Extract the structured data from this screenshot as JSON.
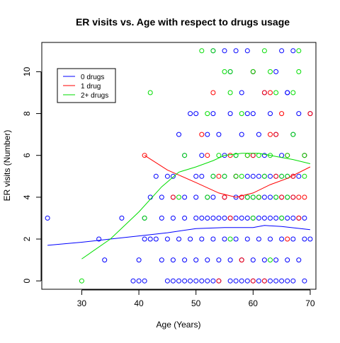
{
  "chart_data": {
    "type": "scatter",
    "title": "ER visits vs. Age with respect to drugs usage",
    "xlabel": "Age (Years)",
    "ylabel": "ER visits (Number)",
    "xlim": [
      23,
      71
    ],
    "ylim": [
      -0.4,
      11.4
    ],
    "xticks": [
      30,
      40,
      50,
      60,
      70
    ],
    "yticks": [
      0,
      2,
      4,
      6,
      8,
      10
    ],
    "grid": false,
    "legend_position": "top-left",
    "legend": [
      {
        "label": "0 drugs",
        "color": "#0000ff"
      },
      {
        "label": "1 drug",
        "color": "#ff0000"
      },
      {
        "label": "2+ drugs",
        "color": "#00dd00"
      }
    ],
    "trend_lines": [
      {
        "name": "0 drugs",
        "color": "#0000ff",
        "x": [
          24,
          30,
          35,
          40,
          45,
          50,
          55,
          58,
          60,
          62,
          65,
          70
        ],
        "y": [
          1.7,
          1.85,
          2.0,
          2.15,
          2.3,
          2.5,
          2.55,
          2.55,
          2.55,
          2.65,
          2.6,
          2.45
        ]
      },
      {
        "name": "1 drug",
        "color": "#ff0000",
        "x": [
          41,
          45,
          50,
          54,
          57,
          60,
          63,
          66,
          70
        ],
        "y": [
          6.0,
          5.3,
          4.7,
          4.2,
          4.0,
          4.2,
          4.6,
          4.9,
          5.45
        ]
      },
      {
        "name": "2+ drugs",
        "color": "#00dd00",
        "x": [
          30,
          35,
          40,
          44,
          47,
          50,
          53,
          55,
          58,
          61,
          64,
          67,
          70
        ],
        "y": [
          1.05,
          2.0,
          3.3,
          4.5,
          5.2,
          5.45,
          5.75,
          6.0,
          6.1,
          6.1,
          5.95,
          5.8,
          5.6
        ]
      }
    ],
    "series": [
      {
        "name": "0 drugs",
        "color": "#0000ff",
        "points": [
          [
            24,
            3
          ],
          [
            33,
            2
          ],
          [
            34,
            1
          ],
          [
            37,
            3
          ],
          [
            39,
            0
          ],
          [
            40,
            0
          ],
          [
            41,
            0
          ],
          [
            42,
            4
          ],
          [
            43,
            5
          ],
          [
            44,
            4
          ],
          [
            45,
            5
          ],
          [
            46,
            5
          ],
          [
            47,
            7
          ],
          [
            48,
            6
          ],
          [
            49,
            8
          ],
          [
            50,
            5
          ],
          [
            51,
            6
          ],
          [
            52,
            7
          ],
          [
            53,
            8
          ],
          [
            54,
            7
          ],
          [
            55,
            6
          ],
          [
            56,
            8
          ],
          [
            57,
            6
          ],
          [
            58,
            7
          ],
          [
            59,
            8
          ],
          [
            60,
            6
          ],
          [
            61,
            7
          ],
          [
            62,
            6
          ],
          [
            63,
            8
          ],
          [
            64,
            7
          ],
          [
            65,
            6
          ],
          [
            66,
            9
          ],
          [
            67,
            7
          ],
          [
            68,
            8
          ],
          [
            69,
            6
          ],
          [
            70,
            8
          ],
          [
            40,
            1
          ],
          [
            41,
            2
          ],
          [
            42,
            2
          ],
          [
            43,
            2
          ],
          [
            44,
            1
          ],
          [
            45,
            2
          ],
          [
            46,
            1
          ],
          [
            47,
            2
          ],
          [
            48,
            1
          ],
          [
            49,
            2
          ],
          [
            50,
            1
          ],
          [
            51,
            2
          ],
          [
            52,
            1
          ],
          [
            53,
            2
          ],
          [
            54,
            1
          ],
          [
            55,
            2
          ],
          [
            56,
            1
          ],
          [
            57,
            2
          ],
          [
            58,
            1
          ],
          [
            59,
            2
          ],
          [
            60,
            1
          ],
          [
            61,
            2
          ],
          [
            62,
            1
          ],
          [
            63,
            2
          ],
          [
            64,
            1
          ],
          [
            65,
            2
          ],
          [
            66,
            1
          ],
          [
            67,
            2
          ],
          [
            68,
            1
          ],
          [
            69,
            2
          ],
          [
            70,
            2
          ],
          [
            41,
            3
          ],
          [
            44,
            3
          ],
          [
            46,
            3
          ],
          [
            48,
            3
          ],
          [
            50,
            3
          ],
          [
            51,
            3
          ],
          [
            52,
            3
          ],
          [
            53,
            3
          ],
          [
            54,
            3
          ],
          [
            55,
            3
          ],
          [
            56,
            3
          ],
          [
            57,
            3
          ],
          [
            58,
            3
          ],
          [
            59,
            3
          ],
          [
            60,
            3
          ],
          [
            61,
            3
          ],
          [
            62,
            3
          ],
          [
            63,
            3
          ],
          [
            64,
            3
          ],
          [
            65,
            3
          ],
          [
            66,
            3
          ],
          [
            67,
            3
          ],
          [
            68,
            3
          ],
          [
            69,
            3
          ],
          [
            45,
            0
          ],
          [
            46,
            0
          ],
          [
            47,
            0
          ],
          [
            48,
            0
          ],
          [
            49,
            0
          ],
          [
            50,
            0
          ],
          [
            51,
            0
          ],
          [
            52,
            0
          ],
          [
            53,
            0
          ],
          [
            54,
            0
          ],
          [
            56,
            0
          ],
          [
            57,
            0
          ],
          [
            58,
            0
          ],
          [
            59,
            0
          ],
          [
            60,
            0
          ],
          [
            61,
            0
          ],
          [
            62,
            0
          ],
          [
            63,
            0
          ],
          [
            64,
            0
          ],
          [
            65,
            0
          ],
          [
            66,
            0
          ],
          [
            67,
            0
          ],
          [
            69,
            0
          ],
          [
            46,
            4
          ],
          [
            48,
            4
          ],
          [
            50,
            4
          ],
          [
            52,
            4
          ],
          [
            53,
            4
          ],
          [
            55,
            4
          ],
          [
            57,
            4
          ],
          [
            58,
            4
          ],
          [
            59,
            4
          ],
          [
            60,
            4
          ],
          [
            61,
            4
          ],
          [
            62,
            4
          ],
          [
            63,
            4
          ],
          [
            64,
            4
          ],
          [
            65,
            4
          ],
          [
            66,
            4
          ],
          [
            67,
            4
          ],
          [
            51,
            5
          ],
          [
            53,
            5
          ],
          [
            55,
            5
          ],
          [
            57,
            5
          ],
          [
            59,
            5
          ],
          [
            60,
            5
          ],
          [
            61,
            5
          ],
          [
            62,
            5
          ],
          [
            63,
            5
          ],
          [
            64,
            5
          ],
          [
            65,
            5
          ],
          [
            66,
            5
          ],
          [
            67,
            5
          ],
          [
            68,
            5
          ],
          [
            53,
            11
          ],
          [
            55,
            11
          ],
          [
            57,
            11
          ],
          [
            59,
            11
          ],
          [
            65,
            11
          ],
          [
            67,
            11
          ],
          [
            56,
            10
          ],
          [
            60,
            10
          ],
          [
            64,
            10
          ],
          [
            66,
            9
          ],
          [
            62,
            9
          ],
          [
            58,
            9
          ],
          [
            50,
            8
          ],
          [
            60,
            8
          ]
        ]
      },
      {
        "name": "1 drug",
        "color": "#ff0000",
        "points": [
          [
            41,
            6
          ],
          [
            46,
            4
          ],
          [
            51,
            7
          ],
          [
            53,
            9
          ],
          [
            56,
            6
          ],
          [
            58,
            4
          ],
          [
            60,
            10
          ],
          [
            62,
            9
          ],
          [
            63,
            7
          ],
          [
            64,
            5
          ],
          [
            65,
            4
          ],
          [
            66,
            6
          ],
          [
            67,
            5
          ],
          [
            68,
            4
          ],
          [
            69,
            6
          ],
          [
            70,
            8
          ],
          [
            52,
            6
          ],
          [
            55,
            4
          ],
          [
            57,
            5
          ],
          [
            59,
            6
          ],
          [
            61,
            4
          ],
          [
            63,
            9
          ],
          [
            65,
            8
          ],
          [
            67,
            4
          ],
          [
            69,
            4
          ],
          [
            54,
            0
          ],
          [
            58,
            1
          ],
          [
            60,
            0
          ],
          [
            62,
            0
          ],
          [
            66,
            2
          ],
          [
            68,
            3
          ],
          [
            54,
            5
          ],
          [
            56,
            3
          ],
          [
            60,
            6
          ],
          [
            64,
            7
          ]
        ]
      },
      {
        "name": "2+ drugs",
        "color": "#00dd00",
        "points": [
          [
            30,
            0
          ],
          [
            41,
            3
          ],
          [
            42,
            9
          ],
          [
            47,
            4
          ],
          [
            48,
            6
          ],
          [
            51,
            11
          ],
          [
            52,
            8
          ],
          [
            53,
            11
          ],
          [
            55,
            10
          ],
          [
            56,
            9
          ],
          [
            57,
            5
          ],
          [
            58,
            8
          ],
          [
            59,
            6
          ],
          [
            60,
            10
          ],
          [
            61,
            4
          ],
          [
            62,
            11
          ],
          [
            63,
            6
          ],
          [
            64,
            9
          ],
          [
            65,
            5
          ],
          [
            66,
            6
          ],
          [
            67,
            9
          ],
          [
            68,
            10
          ],
          [
            69,
            6
          ],
          [
            68,
            11
          ],
          [
            52,
            4
          ],
          [
            54,
            6
          ],
          [
            55,
            5
          ],
          [
            56,
            10
          ],
          [
            58,
            5
          ],
          [
            60,
            4
          ],
          [
            61,
            6
          ],
          [
            63,
            10
          ],
          [
            64,
            4
          ],
          [
            66,
            5
          ],
          [
            67,
            7
          ],
          [
            53,
            5
          ],
          [
            57,
            6
          ],
          [
            59,
            4
          ],
          [
            62,
            5
          ],
          [
            65,
            3
          ],
          [
            69,
            5
          ],
          [
            56,
            2
          ],
          [
            60,
            3
          ],
          [
            63,
            1
          ],
          [
            66,
            4
          ]
        ]
      }
    ]
  }
}
